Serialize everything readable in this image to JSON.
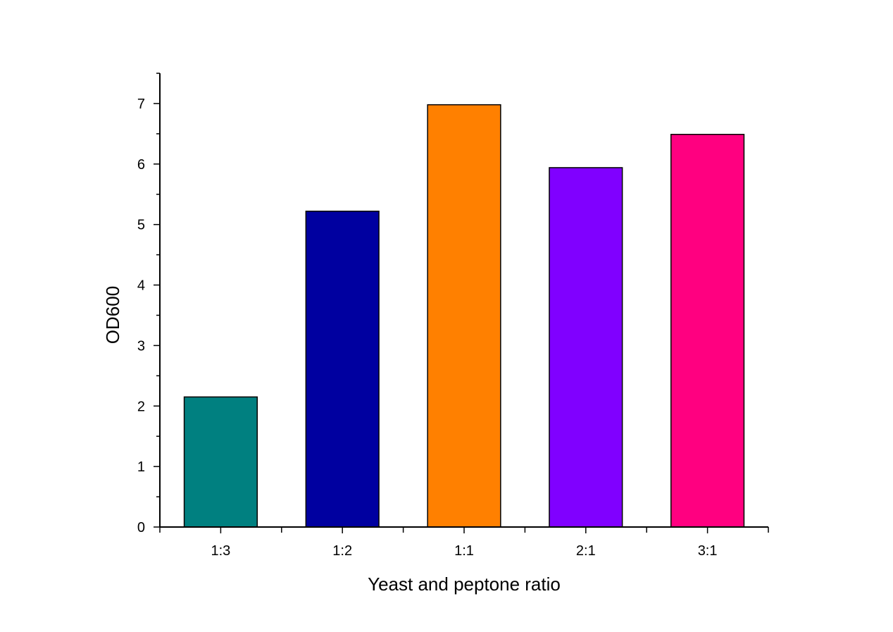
{
  "chart_data": {
    "type": "bar",
    "xlabel": "Yeast and peptone ratio",
    "ylabel": "OD600",
    "categories": [
      "1:3",
      "1:2",
      "1:1",
      "2:1",
      "3:1"
    ],
    "values": [
      2.15,
      5.22,
      6.98,
      5.94,
      6.49
    ],
    "colors": [
      "#008080",
      "#0000A0",
      "#FF8000",
      "#8000FF",
      "#FF0080"
    ],
    "ylim": [
      0,
      7.5
    ],
    "yticks": [
      0,
      1,
      2,
      3,
      4,
      5,
      6,
      7
    ],
    "grid": false,
    "legend": "none"
  }
}
